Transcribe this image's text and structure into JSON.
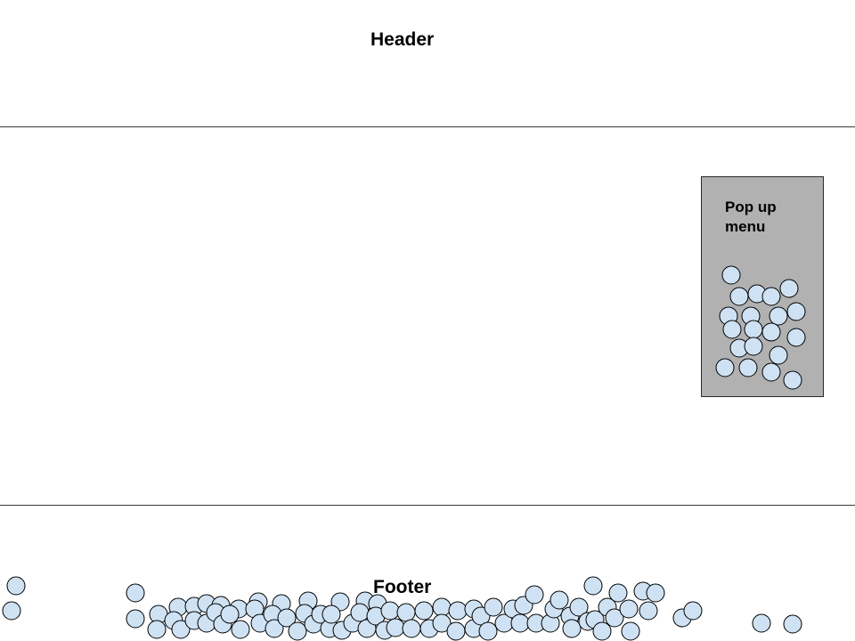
{
  "header": {
    "title": "Header"
  },
  "popup_menu": {
    "label": "Pop up\nmenu"
  },
  "footer": {
    "title": "Footer"
  },
  "colors": {
    "bubble_fill": "#cfe2f3",
    "popup_fill": "#b1b1b1",
    "line": "#3a3a3a"
  }
}
